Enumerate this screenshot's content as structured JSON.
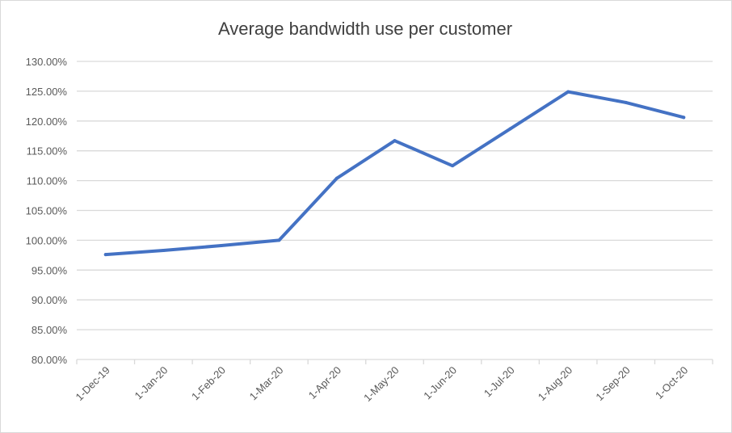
{
  "chart_data": {
    "type": "line",
    "title": "Average bandwidth use per customer",
    "xlabel": "",
    "ylabel": "",
    "categories": [
      "1-Dec-19",
      "1-Jan-20",
      "1-Feb-20",
      "1-Mar-20",
      "1-Apr-20",
      "1-May-20",
      "1-Jun-20",
      "1-Jul-20",
      "1-Aug-20",
      "1-Sep-20",
      "1-Oct-20"
    ],
    "series": [
      {
        "name": "Average bandwidth use per customer",
        "color": "#4472c4",
        "values": [
          97.6,
          98.3,
          99.1,
          100.0,
          110.4,
          116.7,
          112.5,
          118.7,
          124.9,
          123.1,
          120.6
        ]
      }
    ],
    "ylim": [
      80,
      130
    ],
    "ytick_step": 5,
    "ytick_labels": [
      "80.00%",
      "85.00%",
      "90.00%",
      "95.00%",
      "100.00%",
      "105.00%",
      "110.00%",
      "115.00%",
      "120.00%",
      "125.00%",
      "130.00%"
    ],
    "grid": true,
    "legend": "none"
  }
}
